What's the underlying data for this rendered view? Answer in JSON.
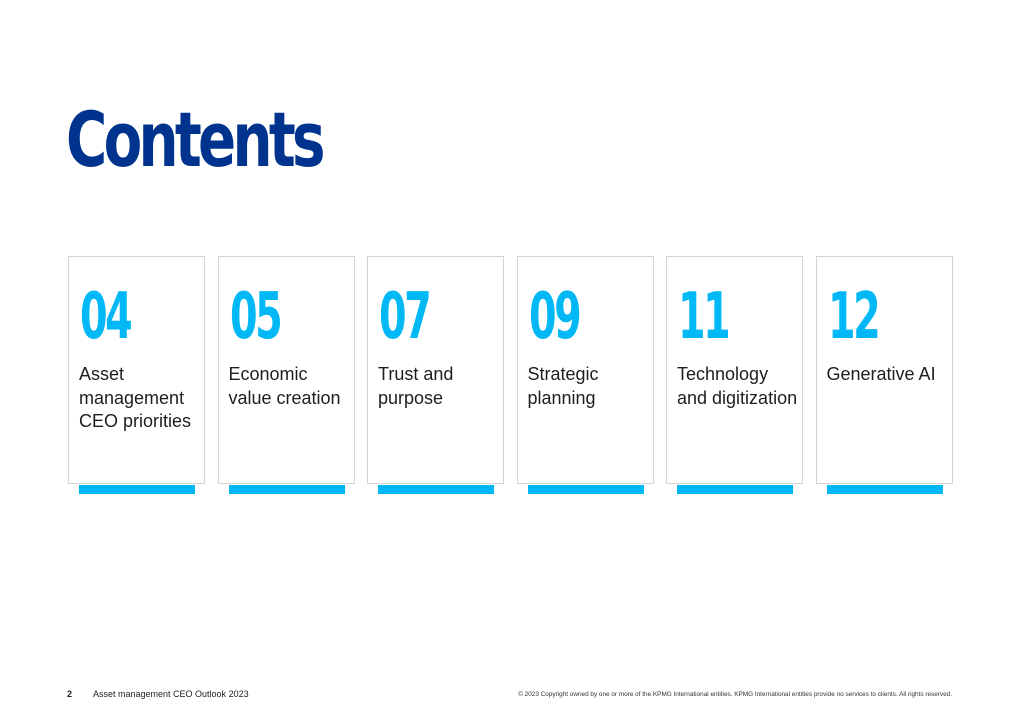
{
  "page": {
    "title": "Contents"
  },
  "colors": {
    "title": "#00338D",
    "accent": "#00B8F5",
    "text": "#1e1e1e"
  },
  "cards": [
    {
      "number": "04",
      "label": "Asset management CEO priorities"
    },
    {
      "number": "05",
      "label": "Economic value creation"
    },
    {
      "number": "07",
      "label": "Trust and purpose"
    },
    {
      "number": "09",
      "label": "Strategic planning"
    },
    {
      "number": "11",
      "label": "Technology and digitization"
    },
    {
      "number": "12",
      "label": "Generative AI"
    }
  ],
  "footer": {
    "page_number": "2",
    "document_title": "Asset management CEO Outlook 2023",
    "copyright": "© 2023 Copyright owned by one or more of the KPMG International entities. KPMG International entities provide no services to clients. All rights reserved."
  }
}
